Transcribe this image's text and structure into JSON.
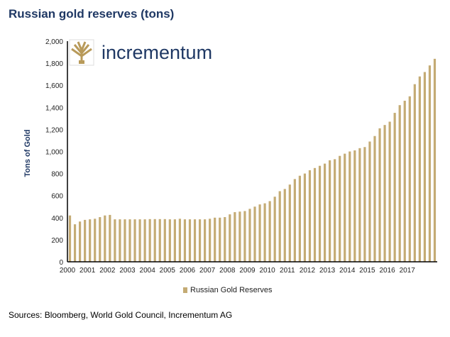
{
  "title": "Russian gold reserves (tons)",
  "source": "Sources: Bloomberg, World Gold Council, Incrementum AG",
  "logo_text": "incrementum",
  "colors": {
    "bar": "#c4ab74",
    "title": "#1f3864"
  },
  "chart_data": {
    "type": "bar",
    "title": "Russian gold reserves (tons)",
    "xlabel": "",
    "ylabel": "Tons of Gold",
    "ylim": [
      0,
      2000
    ],
    "yticks": [
      "0",
      "200",
      "400",
      "600",
      "800",
      "1,000",
      "1,200",
      "1,400",
      "1,600",
      "1,800",
      "2,000"
    ],
    "xticks": [
      "2000",
      "2001",
      "2002",
      "2003",
      "2004",
      "2005",
      "2006",
      "2007",
      "2008",
      "2009",
      "2010",
      "2011",
      "2012",
      "2013",
      "2014",
      "2015",
      "2016",
      "2017"
    ],
    "legend": "bottom",
    "series": [
      {
        "name": "Russian Gold Reserves",
        "values": [
          420,
          340,
          365,
          380,
          385,
          390,
          405,
          420,
          425,
          385,
          385,
          385,
          385,
          385,
          385,
          385,
          387,
          387,
          387,
          387,
          385,
          385,
          390,
          385,
          385,
          385,
          385,
          385,
          390,
          400,
          400,
          405,
          430,
          450,
          455,
          460,
          480,
          500,
          520,
          530,
          550,
          590,
          640,
          660,
          700,
          750,
          780,
          800,
          830,
          850,
          870,
          890,
          920,
          930,
          960,
          980,
          1000,
          1010,
          1030,
          1040,
          1090,
          1140,
          1210,
          1240,
          1270,
          1350,
          1420,
          1460,
          1500,
          1610,
          1680,
          1720,
          1780,
          1840
        ]
      }
    ]
  }
}
